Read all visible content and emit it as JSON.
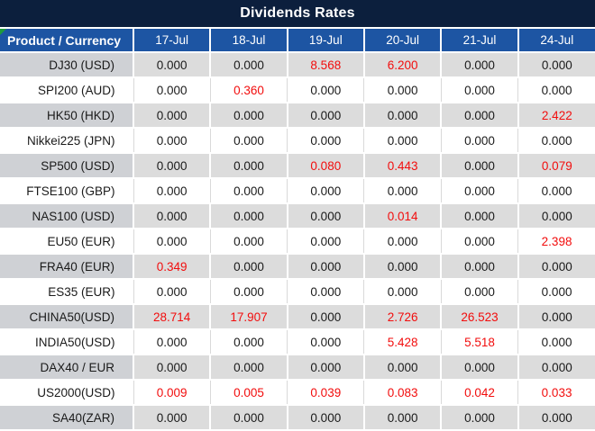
{
  "title": "Dividends Rates",
  "chart_data": {
    "type": "table",
    "title": "Dividends Rates",
    "product_header": "Product / Currency",
    "date_columns": [
      "17-Jul",
      "18-Jul",
      "19-Jul",
      "20-Jul",
      "21-Jul",
      "24-Jul"
    ],
    "rows": [
      {
        "product": "DJ30 (USD)",
        "values": [
          "0.000",
          "0.000",
          "8.568",
          "6.200",
          "0.000",
          "0.000"
        ]
      },
      {
        "product": "SPI200 (AUD)",
        "values": [
          "0.000",
          "0.360",
          "0.000",
          "0.000",
          "0.000",
          "0.000"
        ]
      },
      {
        "product": "HK50 (HKD)",
        "values": [
          "0.000",
          "0.000",
          "0.000",
          "0.000",
          "0.000",
          "2.422"
        ]
      },
      {
        "product": "Nikkei225 (JPN)",
        "values": [
          "0.000",
          "0.000",
          "0.000",
          "0.000",
          "0.000",
          "0.000"
        ]
      },
      {
        "product": "SP500 (USD)",
        "values": [
          "0.000",
          "0.000",
          "0.080",
          "0.443",
          "0.000",
          "0.079"
        ]
      },
      {
        "product": "FTSE100 (GBP)",
        "values": [
          "0.000",
          "0.000",
          "0.000",
          "0.000",
          "0.000",
          "0.000"
        ]
      },
      {
        "product": "NAS100 (USD)",
        "values": [
          "0.000",
          "0.000",
          "0.000",
          "0.014",
          "0.000",
          "0.000"
        ]
      },
      {
        "product": "EU50 (EUR)",
        "values": [
          "0.000",
          "0.000",
          "0.000",
          "0.000",
          "0.000",
          "2.398"
        ]
      },
      {
        "product": "FRA40 (EUR)",
        "values": [
          "0.349",
          "0.000",
          "0.000",
          "0.000",
          "0.000",
          "0.000"
        ]
      },
      {
        "product": "ES35 (EUR)",
        "values": [
          "0.000",
          "0.000",
          "0.000",
          "0.000",
          "0.000",
          "0.000"
        ]
      },
      {
        "product": "CHINA50(USD)",
        "values": [
          "28.714",
          "17.907",
          "0.000",
          "2.726",
          "26.523",
          "0.000"
        ]
      },
      {
        "product": "INDIA50(USD)",
        "values": [
          "0.000",
          "0.000",
          "0.000",
          "5.428",
          "5.518",
          "0.000"
        ]
      },
      {
        "product": "DAX40 / EUR",
        "values": [
          "0.000",
          "0.000",
          "0.000",
          "0.000",
          "0.000",
          "0.000"
        ]
      },
      {
        "product": "US2000(USD)",
        "values": [
          "0.009",
          "0.005",
          "0.039",
          "0.083",
          "0.042",
          "0.033"
        ]
      },
      {
        "product": "SA40(ZAR)",
        "values": [
          "0.000",
          "0.000",
          "0.000",
          "0.000",
          "0.000",
          "0.000"
        ]
      }
    ],
    "value_style_rule": "non-zero values rendered in red, zero values in black",
    "layout_hints": {
      "zebra_striping": "odd rows gray, even rows white",
      "values_alignment": "center",
      "products_alignment": "right"
    }
  },
  "colors": {
    "title_bg": "#0c1f3d",
    "header_bg": "#1d55a3",
    "gray_row_product_bg": "#cfd1d5",
    "gray_row_data_bg": "#dcdcdc",
    "white_row_separator": "#d9d9d9",
    "nonzero_value_text": "#f20d0d",
    "zero_value_text": "#1a1a1a",
    "corner_marker_green": "#1e9b3c"
  },
  "icons": {
    "corner_marker": "green-corner-triangle"
  }
}
